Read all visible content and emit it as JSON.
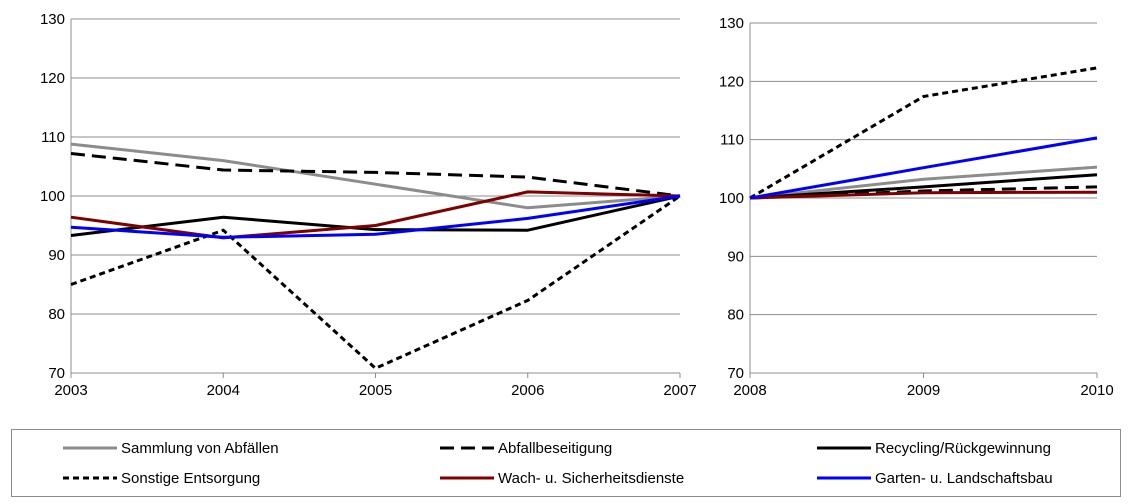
{
  "chart_data": [
    {
      "type": "line",
      "x": [
        "2003",
        "2004",
        "2005",
        "2006",
        "2007"
      ],
      "ylim": [
        70,
        130
      ],
      "yticks": [
        70,
        80,
        90,
        100,
        110,
        120,
        130
      ],
      "grid": "horizontal",
      "series": [
        {
          "name": "Sammlung von Abfällen",
          "color": "#8c8c8c",
          "dash": "solid",
          "values": [
            108.8,
            106.0,
            102.0,
            98.0,
            100.0
          ]
        },
        {
          "name": "Abfallbeseitigung",
          "color": "#000000",
          "dash": "longdash",
          "values": [
            107.2,
            104.4,
            104.0,
            103.2,
            100.0
          ]
        },
        {
          "name": "Recycling/Rückgewinnung",
          "color": "#000000",
          "dash": "solid",
          "values": [
            93.3,
            96.4,
            94.3,
            94.2,
            100.0
          ]
        },
        {
          "name": "Sonstige Entsorgung",
          "color": "#000000",
          "dash": "shortdash",
          "values": [
            85.0,
            94.2,
            70.8,
            82.3,
            100.0
          ]
        },
        {
          "name": "Wach- u. Sicherheitsdienste",
          "color": "#7f0000",
          "dash": "solid",
          "values": [
            96.4,
            92.9,
            95.0,
            100.7,
            100.0
          ]
        },
        {
          "name": "Garten- u. Landschaftsbau",
          "color": "#0000ff",
          "dash": "solid",
          "values": [
            94.7,
            93.0,
            93.5,
            96.2,
            100.0
          ]
        }
      ]
    },
    {
      "type": "line",
      "x": [
        "2008",
        "2009",
        "2010"
      ],
      "ylim": [
        70,
        130
      ],
      "yticks": [
        70,
        80,
        90,
        100,
        110,
        120,
        130
      ],
      "grid": "horizontal",
      "series": [
        {
          "name": "Sammlung von Abfällen",
          "color": "#8c8c8c",
          "dash": "solid",
          "values": [
            100.0,
            103.2,
            105.3
          ]
        },
        {
          "name": "Abfallbeseitigung",
          "color": "#000000",
          "dash": "longdash",
          "values": [
            100.0,
            101.2,
            101.9
          ]
        },
        {
          "name": "Recycling/Rückgewinnung",
          "color": "#000000",
          "dash": "solid",
          "values": [
            100.0,
            101.9,
            104.0
          ]
        },
        {
          "name": "Sonstige Entsorgung",
          "color": "#000000",
          "dash": "shortdash",
          "values": [
            100.0,
            117.4,
            122.3
          ]
        },
        {
          "name": "Wach- u. Sicherheitsdienste",
          "color": "#7f0000",
          "dash": "solid",
          "values": [
            100.0,
            100.9,
            101.0
          ]
        },
        {
          "name": "Garten- u. Landschaftsbau",
          "color": "#0000ff",
          "dash": "solid",
          "values": [
            100.0,
            105.2,
            110.3
          ]
        }
      ]
    }
  ],
  "legend": {
    "placement": "bottom",
    "items": [
      {
        "label": "Sammlung von Abfällen",
        "color": "#8c8c8c",
        "dash": "solid"
      },
      {
        "label": "Abfallbeseitigung",
        "color": "#000000",
        "dash": "longdash"
      },
      {
        "label": "Recycling/Rückgewinnung",
        "color": "#000000",
        "dash": "solid"
      },
      {
        "label": "Sonstige Entsorgung",
        "color": "#000000",
        "dash": "shortdash"
      },
      {
        "label": "Wach- u. Sicherheitsdienste",
        "color": "#7f0000",
        "dash": "solid"
      },
      {
        "label": "Garten- u. Landschaftsbau",
        "color": "#0000ff",
        "dash": "solid"
      }
    ]
  }
}
